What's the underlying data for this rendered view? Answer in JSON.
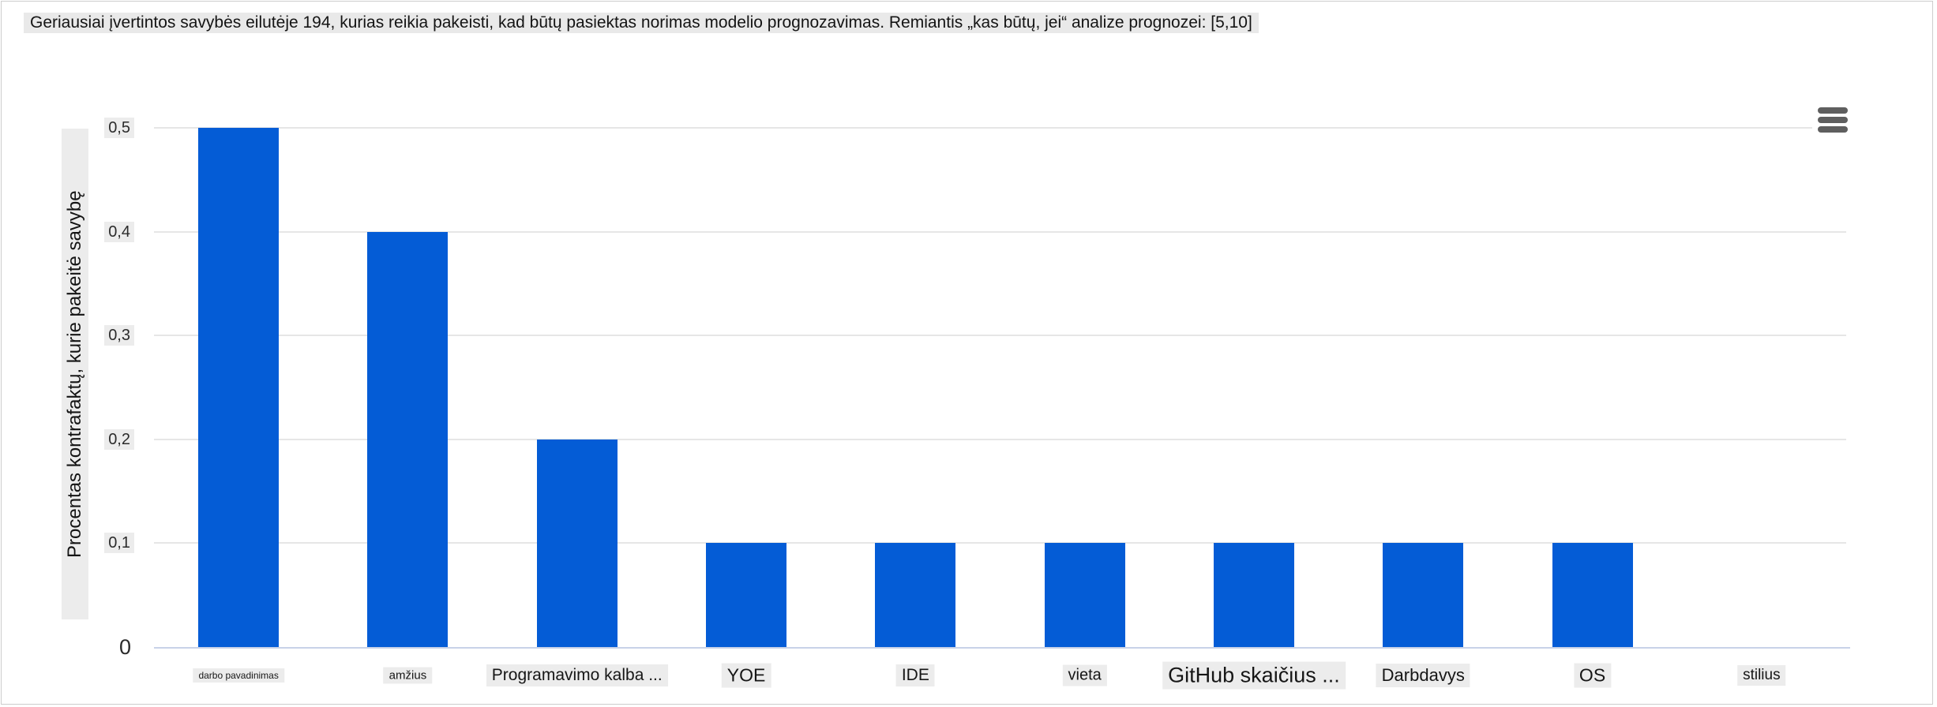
{
  "title": "Geriausiai įvertintos savybės eilutėje 194, kurias reikia pakeisti, kad būtų pasiektas norimas modelio prognozavimas. Remiantis „kas būtų, jei“ analize prognozei: [5,10]",
  "colors": {
    "bar": "#045cd6",
    "gridline": "#e6e6e6",
    "axis_line": "#c8d2e8",
    "label_background": "#ececec",
    "title_background": "#e9e9e9",
    "menu_icon": "#5f5f5f"
  },
  "chart_data": {
    "type": "bar",
    "title": "Geriausiai įvertintos savybės eilutėje 194, kurias reikia pakeisti, kad būtų pasiektas norimas modelio prognozavimas. Remiantis „kas būtų, jei“ analize prognozei: [5,10]",
    "xlabel": "",
    "ylabel": "Procentas kontrafaktų, kurie pakeitė savybę",
    "categories": [
      "darbo pavadinimas",
      "amžius",
      "Programavimo kalba ...",
      "YOE",
      "IDE",
      "vieta",
      "GitHub skaičius ...",
      "Darbdavys",
      "OS",
      "stilius"
    ],
    "values": [
      0.5,
      0.4,
      0.2,
      0.1,
      0.1,
      0.1,
      0.1,
      0.1,
      0.1,
      0
    ],
    "ylim": [
      0,
      0.5
    ],
    "yticks": [
      {
        "value": 0,
        "label": "0"
      },
      {
        "value": 0.1,
        "label": "0,1"
      },
      {
        "value": 0.2,
        "label": "0,2"
      },
      {
        "value": 0.3,
        "label": "0,3"
      },
      {
        "value": 0.4,
        "label": "0,4"
      },
      {
        "value": 0.5,
        "label": "0,5"
      }
    ],
    "grid": true,
    "legend": false
  }
}
